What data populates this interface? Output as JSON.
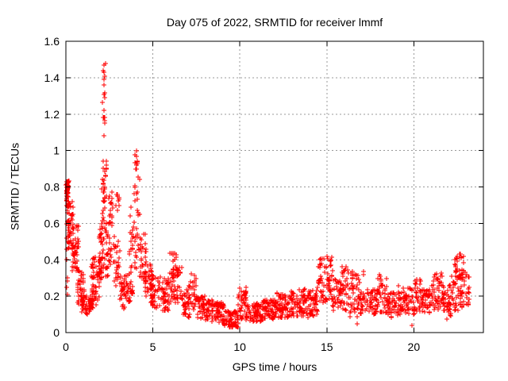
{
  "chart_data": {
    "type": "scatter",
    "title": "Day 075 of 2022, SRMTID for receiver lmmf",
    "xlabel": "GPS time / hours",
    "ylabel": "SRMTID / TECUs",
    "xlim": [
      0,
      24
    ],
    "ylim": [
      0,
      1.6
    ],
    "xticks": [
      0,
      5,
      10,
      15,
      20
    ],
    "xtick_labels": [
      "0",
      "5",
      "10",
      "15",
      "20"
    ],
    "yticks": [
      0,
      0.2,
      0.4,
      0.6,
      0.8,
      1,
      1.2,
      1.4,
      1.6
    ],
    "ytick_labels": [
      "0",
      "0.2",
      "0.4",
      "0.6",
      "0.8",
      "1",
      "1.2",
      "1.4",
      "1.6"
    ],
    "grid": true,
    "grid_style": "dotted",
    "grid_color": "#999999",
    "border_color": "#000000",
    "background": "#ffffff",
    "legend": "none",
    "marker": "plus",
    "marker_color": "#ff0000",
    "series_name": "SRMTID",
    "point_clusters_format": [
      "x_start_hours",
      "x_end_hours",
      "y_min_TECU",
      "y_max_TECU",
      "n_points"
    ],
    "point_clusters": [
      [
        0.02,
        0.18,
        0.55,
        0.85,
        40
      ],
      [
        0.02,
        0.14,
        0.72,
        0.84,
        28
      ],
      [
        0.03,
        0.12,
        0.2,
        0.55,
        10
      ],
      [
        0.15,
        0.45,
        0.45,
        0.72,
        38
      ],
      [
        0.35,
        0.75,
        0.32,
        0.6,
        40
      ],
      [
        0.65,
        1.05,
        0.15,
        0.35,
        40
      ],
      [
        0.9,
        1.6,
        0.1,
        0.2,
        60
      ],
      [
        1.4,
        2.0,
        0.15,
        0.42,
        55
      ],
      [
        1.9,
        2.15,
        0.3,
        0.62,
        32
      ],
      [
        2.05,
        2.35,
        0.35,
        0.95,
        45
      ],
      [
        2.1,
        2.28,
        1.05,
        1.48,
        6
      ],
      [
        2.3,
        2.65,
        0.3,
        0.62,
        28
      ],
      [
        2.45,
        2.7,
        0.58,
        0.78,
        14
      ],
      [
        2.75,
        3.1,
        0.25,
        0.55,
        26
      ],
      [
        2.85,
        3.05,
        0.62,
        0.78,
        9
      ],
      [
        3.1,
        3.6,
        0.13,
        0.32,
        40
      ],
      [
        3.65,
        4.25,
        0.35,
        0.9,
        48
      ],
      [
        3.95,
        4.2,
        0.88,
        1.0,
        7
      ],
      [
        3.55,
        3.9,
        0.15,
        0.35,
        22
      ],
      [
        4.25,
        4.65,
        0.28,
        0.55,
        30
      ],
      [
        4.5,
        5.0,
        0.2,
        0.38,
        38
      ],
      [
        4.9,
        5.5,
        0.13,
        0.32,
        48
      ],
      [
        5.5,
        5.95,
        0.12,
        0.3,
        40
      ],
      [
        5.95,
        6.35,
        0.15,
        0.44,
        42
      ],
      [
        6.35,
        6.7,
        0.15,
        0.36,
        26
      ],
      [
        6.7,
        7.1,
        0.08,
        0.26,
        35
      ],
      [
        7.1,
        7.55,
        0.1,
        0.33,
        30
      ],
      [
        7.55,
        8.4,
        0.07,
        0.2,
        65
      ],
      [
        8.4,
        9.1,
        0.05,
        0.17,
        60
      ],
      [
        9.1,
        9.9,
        0.03,
        0.12,
        65
      ],
      [
        9.9,
        10.4,
        0.07,
        0.27,
        42
      ],
      [
        10.4,
        11.3,
        0.06,
        0.16,
        70
      ],
      [
        11.3,
        12.1,
        0.07,
        0.18,
        65
      ],
      [
        12.1,
        12.95,
        0.08,
        0.22,
        68
      ],
      [
        12.95,
        13.75,
        0.09,
        0.24,
        65
      ],
      [
        13.75,
        14.45,
        0.08,
        0.24,
        55
      ],
      [
        14.45,
        15.35,
        0.15,
        0.42,
        70
      ],
      [
        15.35,
        15.85,
        0.12,
        0.3,
        38
      ],
      [
        15.85,
        16.3,
        0.12,
        0.38,
        36
      ],
      [
        16.3,
        17.1,
        0.08,
        0.34,
        60
      ],
      [
        17.1,
        17.9,
        0.1,
        0.24,
        55
      ],
      [
        17.9,
        18.45,
        0.1,
        0.33,
        40
      ],
      [
        18.45,
        19.1,
        0.08,
        0.22,
        45
      ],
      [
        19.1,
        19.9,
        0.1,
        0.26,
        55
      ],
      [
        19.9,
        20.5,
        0.1,
        0.3,
        45
      ],
      [
        20.5,
        21.0,
        0.1,
        0.25,
        38
      ],
      [
        21.0,
        21.65,
        0.12,
        0.33,
        48
      ],
      [
        21.65,
        22.15,
        0.08,
        0.26,
        40
      ],
      [
        22.15,
        22.95,
        0.12,
        0.43,
        60
      ],
      [
        22.35,
        22.75,
        0.28,
        0.42,
        16
      ],
      [
        22.95,
        23.2,
        0.15,
        0.32,
        16
      ]
    ],
    "notable_points": [
      [
        2.19,
        1.47
      ],
      [
        2.16,
        1.44
      ],
      [
        2.2,
        1.43
      ],
      [
        2.22,
        1.41
      ],
      [
        2.18,
        1.39
      ],
      [
        2.21,
        1.36
      ],
      [
        2.2,
        1.31
      ],
      [
        2.23,
        1.29
      ],
      [
        2.17,
        1.22
      ],
      [
        2.2,
        1.18
      ],
      [
        2.22,
        1.15
      ],
      [
        2.19,
        1.08
      ],
      [
        4.08,
        1.0
      ],
      [
        0.08,
        0.83
      ],
      [
        9.55,
        0.035
      ],
      [
        19.88,
        0.04
      ],
      [
        22.68,
        0.43
      ],
      [
        15.02,
        0.42
      ],
      [
        21.9,
        0.075
      ],
      [
        16.75,
        0.05
      ]
    ]
  }
}
